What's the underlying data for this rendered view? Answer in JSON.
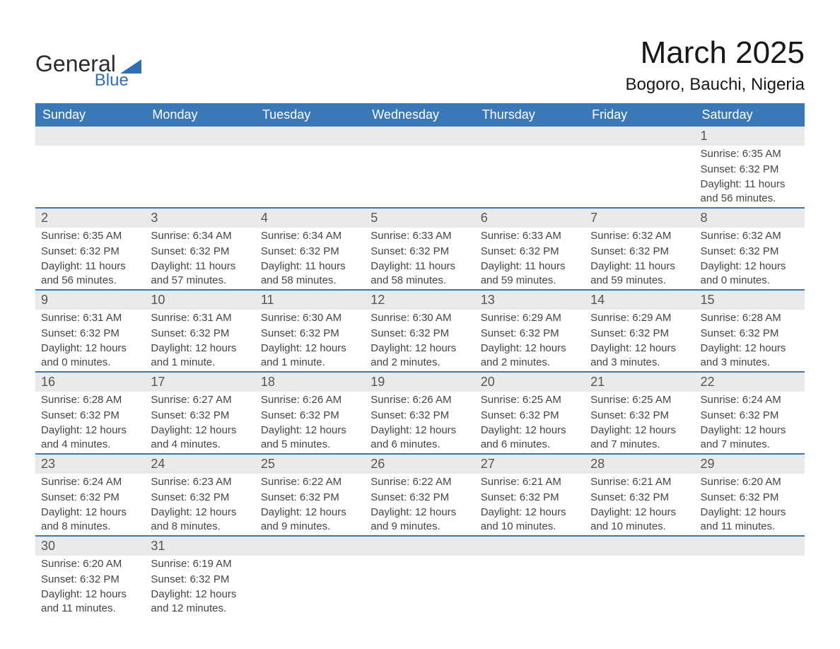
{
  "logo": {
    "word1": "General",
    "word2": "Blue"
  },
  "title": "March 2025",
  "location": "Bogoro, Bauchi, Nigeria",
  "colors": {
    "header_bg": "#3b78b8",
    "header_text": "#ffffff",
    "week_border": "#3b78b8",
    "daynum_bg": "#eaeaea",
    "cell_text": "#444444",
    "daynum_text": "#555555",
    "logo_blue": "#2f6fb3"
  },
  "day_headers": [
    "Sunday",
    "Monday",
    "Tuesday",
    "Wednesday",
    "Thursday",
    "Friday",
    "Saturday"
  ],
  "weeks": [
    [
      {
        "n": "",
        "sunrise": "",
        "sunset": "",
        "daylight": ""
      },
      {
        "n": "",
        "sunrise": "",
        "sunset": "",
        "daylight": ""
      },
      {
        "n": "",
        "sunrise": "",
        "sunset": "",
        "daylight": ""
      },
      {
        "n": "",
        "sunrise": "",
        "sunset": "",
        "daylight": ""
      },
      {
        "n": "",
        "sunrise": "",
        "sunset": "",
        "daylight": ""
      },
      {
        "n": "",
        "sunrise": "",
        "sunset": "",
        "daylight": ""
      },
      {
        "n": "1",
        "sunrise": "Sunrise: 6:35 AM",
        "sunset": "Sunset: 6:32 PM",
        "daylight": "Daylight: 11 hours and 56 minutes."
      }
    ],
    [
      {
        "n": "2",
        "sunrise": "Sunrise: 6:35 AM",
        "sunset": "Sunset: 6:32 PM",
        "daylight": "Daylight: 11 hours and 56 minutes."
      },
      {
        "n": "3",
        "sunrise": "Sunrise: 6:34 AM",
        "sunset": "Sunset: 6:32 PM",
        "daylight": "Daylight: 11 hours and 57 minutes."
      },
      {
        "n": "4",
        "sunrise": "Sunrise: 6:34 AM",
        "sunset": "Sunset: 6:32 PM",
        "daylight": "Daylight: 11 hours and 58 minutes."
      },
      {
        "n": "5",
        "sunrise": "Sunrise: 6:33 AM",
        "sunset": "Sunset: 6:32 PM",
        "daylight": "Daylight: 11 hours and 58 minutes."
      },
      {
        "n": "6",
        "sunrise": "Sunrise: 6:33 AM",
        "sunset": "Sunset: 6:32 PM",
        "daylight": "Daylight: 11 hours and 59 minutes."
      },
      {
        "n": "7",
        "sunrise": "Sunrise: 6:32 AM",
        "sunset": "Sunset: 6:32 PM",
        "daylight": "Daylight: 11 hours and 59 minutes."
      },
      {
        "n": "8",
        "sunrise": "Sunrise: 6:32 AM",
        "sunset": "Sunset: 6:32 PM",
        "daylight": "Daylight: 12 hours and 0 minutes."
      }
    ],
    [
      {
        "n": "9",
        "sunrise": "Sunrise: 6:31 AM",
        "sunset": "Sunset: 6:32 PM",
        "daylight": "Daylight: 12 hours and 0 minutes."
      },
      {
        "n": "10",
        "sunrise": "Sunrise: 6:31 AM",
        "sunset": "Sunset: 6:32 PM",
        "daylight": "Daylight: 12 hours and 1 minute."
      },
      {
        "n": "11",
        "sunrise": "Sunrise: 6:30 AM",
        "sunset": "Sunset: 6:32 PM",
        "daylight": "Daylight: 12 hours and 1 minute."
      },
      {
        "n": "12",
        "sunrise": "Sunrise: 6:30 AM",
        "sunset": "Sunset: 6:32 PM",
        "daylight": "Daylight: 12 hours and 2 minutes."
      },
      {
        "n": "13",
        "sunrise": "Sunrise: 6:29 AM",
        "sunset": "Sunset: 6:32 PM",
        "daylight": "Daylight: 12 hours and 2 minutes."
      },
      {
        "n": "14",
        "sunrise": "Sunrise: 6:29 AM",
        "sunset": "Sunset: 6:32 PM",
        "daylight": "Daylight: 12 hours and 3 minutes."
      },
      {
        "n": "15",
        "sunrise": "Sunrise: 6:28 AM",
        "sunset": "Sunset: 6:32 PM",
        "daylight": "Daylight: 12 hours and 3 minutes."
      }
    ],
    [
      {
        "n": "16",
        "sunrise": "Sunrise: 6:28 AM",
        "sunset": "Sunset: 6:32 PM",
        "daylight": "Daylight: 12 hours and 4 minutes."
      },
      {
        "n": "17",
        "sunrise": "Sunrise: 6:27 AM",
        "sunset": "Sunset: 6:32 PM",
        "daylight": "Daylight: 12 hours and 4 minutes."
      },
      {
        "n": "18",
        "sunrise": "Sunrise: 6:26 AM",
        "sunset": "Sunset: 6:32 PM",
        "daylight": "Daylight: 12 hours and 5 minutes."
      },
      {
        "n": "19",
        "sunrise": "Sunrise: 6:26 AM",
        "sunset": "Sunset: 6:32 PM",
        "daylight": "Daylight: 12 hours and 6 minutes."
      },
      {
        "n": "20",
        "sunrise": "Sunrise: 6:25 AM",
        "sunset": "Sunset: 6:32 PM",
        "daylight": "Daylight: 12 hours and 6 minutes."
      },
      {
        "n": "21",
        "sunrise": "Sunrise: 6:25 AM",
        "sunset": "Sunset: 6:32 PM",
        "daylight": "Daylight: 12 hours and 7 minutes."
      },
      {
        "n": "22",
        "sunrise": "Sunrise: 6:24 AM",
        "sunset": "Sunset: 6:32 PM",
        "daylight": "Daylight: 12 hours and 7 minutes."
      }
    ],
    [
      {
        "n": "23",
        "sunrise": "Sunrise: 6:24 AM",
        "sunset": "Sunset: 6:32 PM",
        "daylight": "Daylight: 12 hours and 8 minutes."
      },
      {
        "n": "24",
        "sunrise": "Sunrise: 6:23 AM",
        "sunset": "Sunset: 6:32 PM",
        "daylight": "Daylight: 12 hours and 8 minutes."
      },
      {
        "n": "25",
        "sunrise": "Sunrise: 6:22 AM",
        "sunset": "Sunset: 6:32 PM",
        "daylight": "Daylight: 12 hours and 9 minutes."
      },
      {
        "n": "26",
        "sunrise": "Sunrise: 6:22 AM",
        "sunset": "Sunset: 6:32 PM",
        "daylight": "Daylight: 12 hours and 9 minutes."
      },
      {
        "n": "27",
        "sunrise": "Sunrise: 6:21 AM",
        "sunset": "Sunset: 6:32 PM",
        "daylight": "Daylight: 12 hours and 10 minutes."
      },
      {
        "n": "28",
        "sunrise": "Sunrise: 6:21 AM",
        "sunset": "Sunset: 6:32 PM",
        "daylight": "Daylight: 12 hours and 10 minutes."
      },
      {
        "n": "29",
        "sunrise": "Sunrise: 6:20 AM",
        "sunset": "Sunset: 6:32 PM",
        "daylight": "Daylight: 12 hours and 11 minutes."
      }
    ],
    [
      {
        "n": "30",
        "sunrise": "Sunrise: 6:20 AM",
        "sunset": "Sunset: 6:32 PM",
        "daylight": "Daylight: 12 hours and 11 minutes."
      },
      {
        "n": "31",
        "sunrise": "Sunrise: 6:19 AM",
        "sunset": "Sunset: 6:32 PM",
        "daylight": "Daylight: 12 hours and 12 minutes."
      },
      {
        "n": "",
        "sunrise": "",
        "sunset": "",
        "daylight": ""
      },
      {
        "n": "",
        "sunrise": "",
        "sunset": "",
        "daylight": ""
      },
      {
        "n": "",
        "sunrise": "",
        "sunset": "",
        "daylight": ""
      },
      {
        "n": "",
        "sunrise": "",
        "sunset": "",
        "daylight": ""
      },
      {
        "n": "",
        "sunrise": "",
        "sunset": "",
        "daylight": ""
      }
    ]
  ]
}
